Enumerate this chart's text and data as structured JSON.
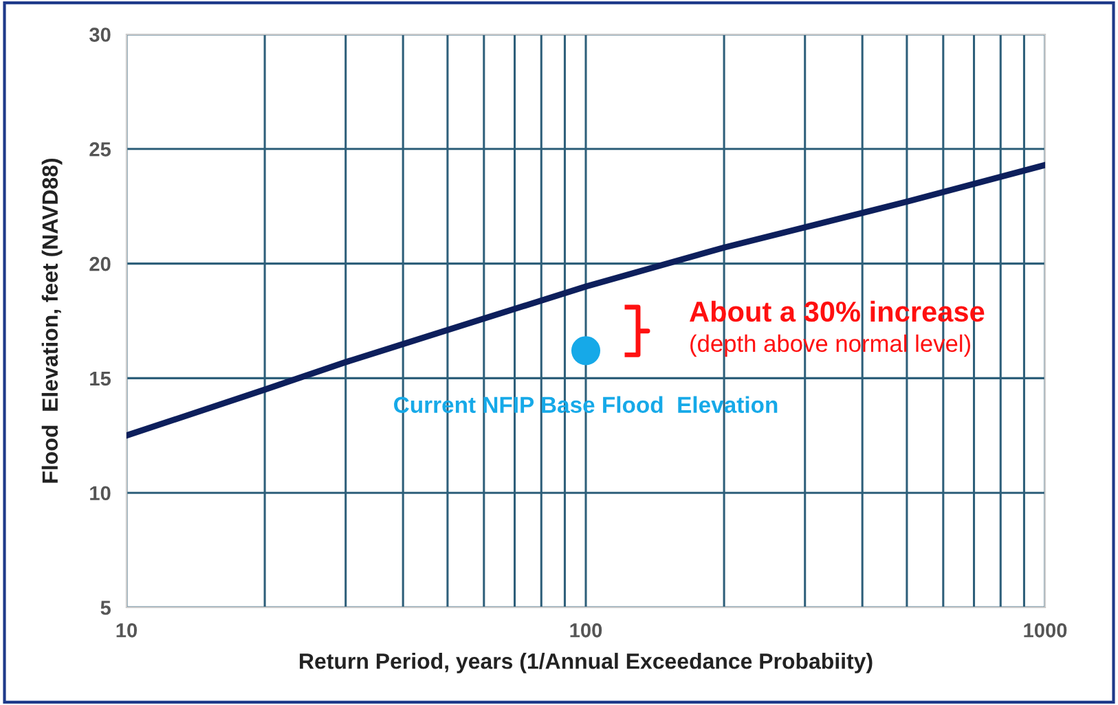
{
  "chart_data": {
    "type": "line",
    "xlabel": "Return Period, years (1/Annual Exceedance Probabiity)",
    "ylabel": "Flood  Elevation, feet (NAVD88)",
    "log": "x",
    "xlim": [
      10,
      1000
    ],
    "ylim": [
      5,
      30
    ],
    "xticks": [
      10,
      {
        "value": 20,
        "label": null
      },
      {
        "value": 30,
        "label": null
      },
      {
        "value": 40,
        "label": null
      },
      {
        "value": 50,
        "label": null
      },
      {
        "value": 60,
        "label": null
      },
      {
        "value": 70,
        "label": null
      },
      {
        "value": 80,
        "label": null
      },
      {
        "value": 90,
        "label": null
      },
      100,
      {
        "value": 200,
        "label": null
      },
      {
        "value": 300,
        "label": null
      },
      {
        "value": 400,
        "label": null
      },
      {
        "value": 500,
        "label": null
      },
      {
        "value": 600,
        "label": null
      },
      {
        "value": 700,
        "label": null
      },
      {
        "value": 800,
        "label": null
      },
      {
        "value": 900,
        "label": null
      },
      1000
    ],
    "yticks": [
      5,
      10,
      15,
      20,
      25,
      30
    ],
    "grid": true,
    "marker": "none",
    "line_style": "solid",
    "series": [
      {
        "color": "#0d1f5c",
        "x": [
          10,
          20,
          30,
          50,
          100,
          200,
          500,
          1000
        ],
        "values": [
          12.5,
          14.5,
          15.7,
          17.1,
          19.0,
          20.7,
          22.7,
          24.3
        ]
      },
      {
        "type": "scatter",
        "name": "Current NFIP Base Flood  Elevation",
        "color": "#16a9e8",
        "marker": "circle",
        "x": [
          100
        ],
        "values": [
          16.2
        ]
      }
    ],
    "annotations": [
      "About a 30% increase",
      "(depth above normal level)"
    ]
  }
}
